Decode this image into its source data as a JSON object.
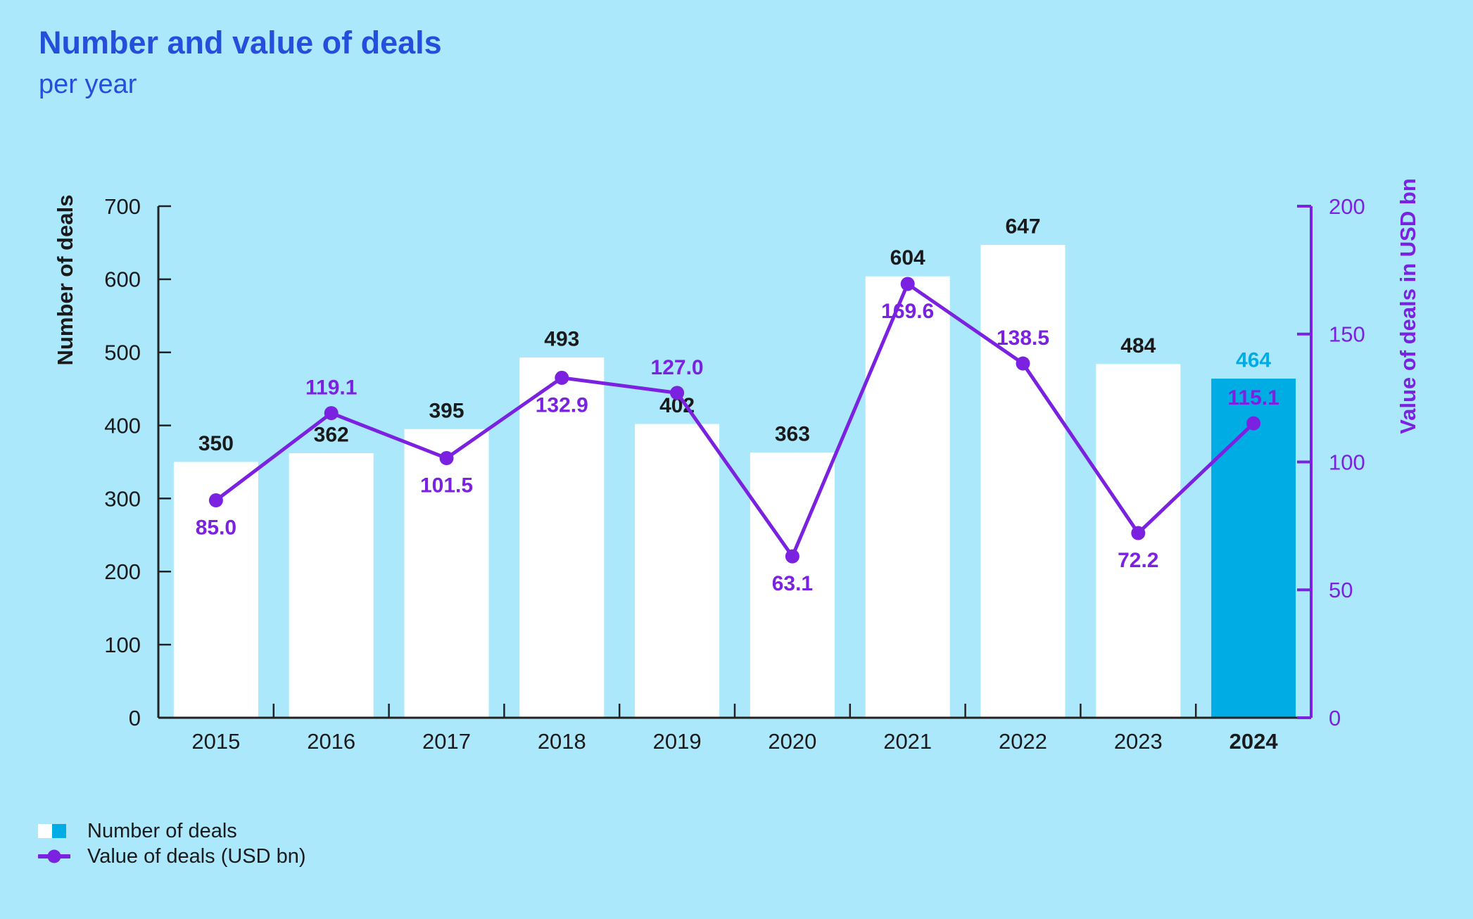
{
  "title": "Number and value of deals",
  "subtitle": "per year",
  "colors": {
    "background": "#ACE8FC",
    "title_blue": "#2350DB",
    "bar_fill": "#FFFFFF",
    "bar_highlight": "#00ACE4",
    "purple": "#7A22E0",
    "dark_text": "#1A1A1A",
    "axis_black": "#222222"
  },
  "legend": {
    "items": [
      {
        "label": "Number of deals",
        "swatch": "bar-squares"
      },
      {
        "label": "Value of deals (USD bn)",
        "swatch": "line-dot"
      }
    ]
  },
  "chart_data": {
    "type": "bar+line",
    "categories": [
      "2015",
      "2016",
      "2017",
      "2018",
      "2019",
      "2020",
      "2021",
      "2022",
      "2023",
      "2024"
    ],
    "series": [
      {
        "name": "Number of deals",
        "type": "bar",
        "axis": "left",
        "values": [
          350,
          362,
          395,
          493,
          402,
          363,
          604,
          647,
          484,
          464
        ]
      },
      {
        "name": "Value of deals (USD bn)",
        "type": "line",
        "axis": "right",
        "values": [
          85.0,
          119.1,
          101.5,
          132.9,
          127.0,
          63.1,
          169.6,
          138.5,
          72.2,
          115.1
        ]
      }
    ],
    "value_label_format": "one-decimal",
    "value_label_position": [
      "below",
      "above",
      "below",
      "below",
      "above",
      "below",
      "below",
      "above",
      "below",
      "above"
    ],
    "left_axis": {
      "label": "Number of deals",
      "min": 0,
      "max": 700,
      "tick_step": 100
    },
    "right_axis": {
      "label": "Value of deals in USD bn",
      "min": 0,
      "max": 200,
      "tick_step": 50
    },
    "highlight_category": "2024",
    "grid": false,
    "legend_position": "bottom-left"
  }
}
